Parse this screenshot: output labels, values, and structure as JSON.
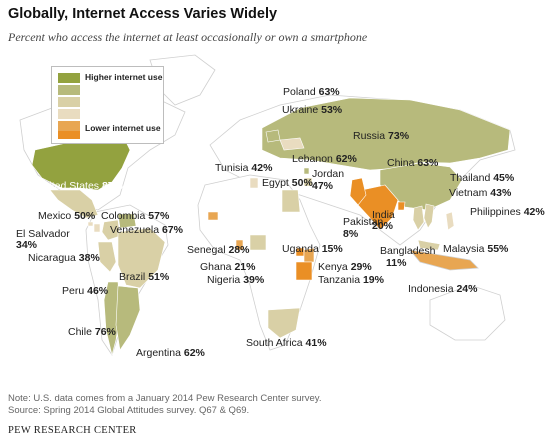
{
  "title": "Globally, Internet Access Varies Widely",
  "subtitle": "Percent who access the internet at least occasionally or own a smartphone",
  "legend": {
    "high_label": "Higher internet use",
    "low_label": "Lower internet use",
    "colors": [
      "#93a23f",
      "#b7ba7c",
      "#d9d0a6",
      "#e9dcc0",
      "#e8a652",
      "#ea8f25"
    ]
  },
  "colors": {
    "land": "#ffffff",
    "border": "#cfcfcf",
    "high": "#93a23f",
    "midhigh": "#b7ba7c",
    "mid": "#d9d0a6",
    "low": "#e8a652",
    "lowest": "#ea8f25"
  },
  "countries": {
    "poland": {
      "name": "Poland",
      "value": "63%"
    },
    "ukraine": {
      "name": "Ukraine",
      "value": "53%"
    },
    "russia": {
      "name": "Russia",
      "value": "73%"
    },
    "united_states": {
      "name": "United States",
      "value": "87%"
    },
    "lebanon": {
      "name": "Lebanon",
      "value": "62%"
    },
    "tunisia": {
      "name": "Tunisia",
      "value": "42%"
    },
    "jordan": {
      "name": "Jordan",
      "value": "47%"
    },
    "egypt": {
      "name": "Egypt",
      "value": "50%"
    },
    "china": {
      "name": "China",
      "value": "63%"
    },
    "thailand": {
      "name": "Thailand",
      "value": "45%"
    },
    "vietnam": {
      "name": "Vietnam",
      "value": "43%"
    },
    "philippines": {
      "name": "Philippines",
      "value": "42%"
    },
    "mexico": {
      "name": "Mexico",
      "value": "50%"
    },
    "colombia": {
      "name": "Colombia",
      "value": "57%"
    },
    "venezuela": {
      "name": "Venezuela",
      "value": "67%"
    },
    "el_salvador": {
      "name": "El Salvador",
      "value": "34%"
    },
    "nicaragua": {
      "name": "Nicaragua",
      "value": "38%"
    },
    "india": {
      "name": "India",
      "value": "20%"
    },
    "pakistan": {
      "name": "Pakistan",
      "value": "8%"
    },
    "bangladesh": {
      "name": "Bangladesh",
      "value": "11%"
    },
    "malaysia": {
      "name": "Malaysia",
      "value": "55%"
    },
    "senegal": {
      "name": "Senegal",
      "value": "28%"
    },
    "uganda": {
      "name": "Uganda",
      "value": "15%"
    },
    "brazil": {
      "name": "Brazil",
      "value": "51%"
    },
    "ghana": {
      "name": "Ghana",
      "value": "21%"
    },
    "kenya": {
      "name": "Kenya",
      "value": "29%"
    },
    "tanzania": {
      "name": "Tanzania",
      "value": "19%"
    },
    "peru": {
      "name": "Peru",
      "value": "46%"
    },
    "nigeria": {
      "name": "Nigeria",
      "value": "39%"
    },
    "indonesia": {
      "name": "Indonesia",
      "value": "24%"
    },
    "chile": {
      "name": "Chile",
      "value": "76%"
    },
    "south_africa": {
      "name": "South Africa",
      "value": "41%"
    },
    "argentina": {
      "name": "Argentina",
      "value": "62%"
    }
  },
  "notes": {
    "line1": "Note: U.S. data comes from a January 2014 Pew Research Center survey.",
    "line2": "Source: Spring 2014 Global Attitudes survey. Q67 & Q69."
  },
  "footer": "PEW RESEARCH CENTER"
}
